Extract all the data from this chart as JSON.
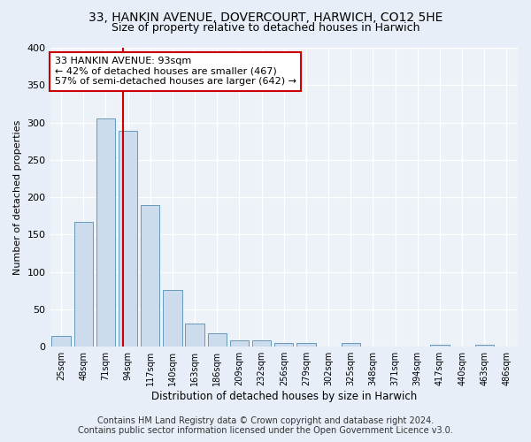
{
  "title_line1": "33, HANKIN AVENUE, DOVERCOURT, HARWICH, CO12 5HE",
  "title_line2": "Size of property relative to detached houses in Harwich",
  "xlabel": "Distribution of detached houses by size in Harwich",
  "ylabel": "Number of detached properties",
  "footer_line1": "Contains HM Land Registry data © Crown copyright and database right 2024.",
  "footer_line2": "Contains public sector information licensed under the Open Government Licence v3.0.",
  "categories": [
    "25sqm",
    "48sqm",
    "71sqm",
    "94sqm",
    "117sqm",
    "140sqm",
    "163sqm",
    "186sqm",
    "209sqm",
    "232sqm",
    "256sqm",
    "279sqm",
    "302sqm",
    "325sqm",
    "348sqm",
    "371sqm",
    "394sqm",
    "417sqm",
    "440sqm",
    "463sqm",
    "486sqm"
  ],
  "values": [
    14,
    167,
    305,
    289,
    190,
    76,
    31,
    18,
    9,
    9,
    5,
    5,
    0,
    5,
    0,
    0,
    0,
    3,
    0,
    3,
    0
  ],
  "bar_color": "#ccdcec",
  "bar_edge_color": "#6699bb",
  "vline_x": 2.78,
  "vline_color": "#cc0000",
  "annotation_title": "33 HANKIN AVENUE: 93sqm",
  "annotation_line1": "← 42% of detached houses are smaller (467)",
  "annotation_line2": "57% of semi-detached houses are larger (642) →",
  "annotation_box_color": "#ffffff",
  "annotation_box_edge": "#cc0000",
  "ylim": [
    0,
    400
  ],
  "yticks": [
    0,
    50,
    100,
    150,
    200,
    250,
    300,
    350,
    400
  ],
  "bg_color": "#e8eef8",
  "plot_bg_color": "#edf2f8",
  "grid_color": "#ffffff",
  "title_fontsize": 10,
  "subtitle_fontsize": 9,
  "footer_fontsize": 7
}
